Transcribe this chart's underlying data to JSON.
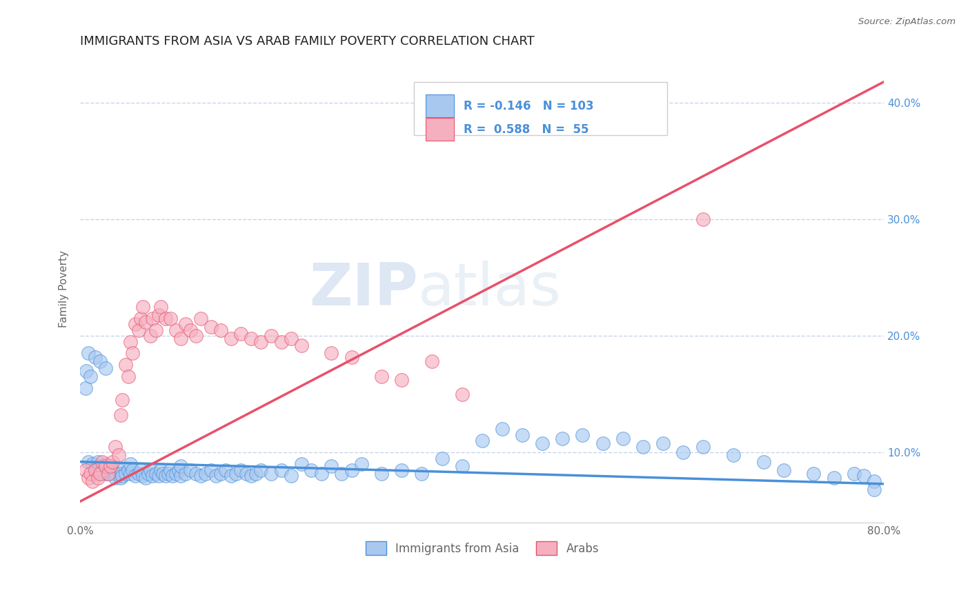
{
  "title": "IMMIGRANTS FROM ASIA VS ARAB FAMILY POVERTY CORRELATION CHART",
  "source": "Source: ZipAtlas.com",
  "ylabel": "Family Poverty",
  "xlim": [
    0.0,
    0.8
  ],
  "ylim": [
    0.04,
    0.44
  ],
  "xticks": [
    0.0,
    0.1,
    0.2,
    0.3,
    0.4,
    0.5,
    0.6,
    0.7,
    0.8
  ],
  "xtick_labels": [
    "0.0%",
    "",
    "",
    "",
    "",
    "",
    "",
    "",
    "80.0%"
  ],
  "yticks_right": [
    0.1,
    0.2,
    0.3,
    0.4
  ],
  "ytick_labels_right": [
    "10.0%",
    "20.0%",
    "30.0%",
    "40.0%"
  ],
  "blue_R": -0.146,
  "blue_N": 103,
  "pink_R": 0.588,
  "pink_N": 55,
  "blue_color": "#A8C8F0",
  "pink_color": "#F5B0C0",
  "blue_line_color": "#4A90D9",
  "pink_line_color": "#E8506A",
  "blue_line_y0": 0.092,
  "blue_line_y1": 0.073,
  "pink_line_y0": 0.058,
  "pink_line_y1": 0.418,
  "legend_label_blue": "Immigrants from Asia",
  "legend_label_pink": "Arabs",
  "watermark_zip": "ZIP",
  "watermark_atlas": "atlas",
  "background_color": "#FFFFFF",
  "grid_color": "#C8D4E8",
  "title_color": "#333333",
  "axis_label_color": "#666666",
  "legend_text_color": "#4A90D9",
  "blue_scatter_x": [
    0.005,
    0.008,
    0.012,
    0.015,
    0.018,
    0.02,
    0.02,
    0.022,
    0.025,
    0.025,
    0.028,
    0.03,
    0.03,
    0.032,
    0.035,
    0.035,
    0.038,
    0.04,
    0.04,
    0.042,
    0.045,
    0.048,
    0.05,
    0.05,
    0.052,
    0.055,
    0.058,
    0.06,
    0.062,
    0.065,
    0.068,
    0.07,
    0.072,
    0.075,
    0.078,
    0.08,
    0.082,
    0.085,
    0.088,
    0.09,
    0.092,
    0.095,
    0.098,
    0.1,
    0.1,
    0.105,
    0.11,
    0.115,
    0.12,
    0.125,
    0.13,
    0.135,
    0.14,
    0.145,
    0.15,
    0.155,
    0.16,
    0.165,
    0.17,
    0.175,
    0.18,
    0.19,
    0.2,
    0.21,
    0.22,
    0.23,
    0.24,
    0.25,
    0.26,
    0.27,
    0.28,
    0.3,
    0.32,
    0.34,
    0.36,
    0.38,
    0.4,
    0.42,
    0.44,
    0.46,
    0.48,
    0.5,
    0.52,
    0.54,
    0.56,
    0.58,
    0.6,
    0.62,
    0.65,
    0.68,
    0.7,
    0.73,
    0.75,
    0.77,
    0.78,
    0.79,
    0.79,
    0.006,
    0.008,
    0.01,
    0.015,
    0.02,
    0.025
  ],
  "blue_scatter_y": [
    0.155,
    0.092,
    0.09,
    0.085,
    0.092,
    0.088,
    0.082,
    0.085,
    0.09,
    0.082,
    0.085,
    0.082,
    0.088,
    0.085,
    0.082,
    0.078,
    0.085,
    0.082,
    0.078,
    0.08,
    0.082,
    0.085,
    0.082,
    0.09,
    0.085,
    0.08,
    0.082,
    0.085,
    0.08,
    0.078,
    0.082,
    0.085,
    0.08,
    0.082,
    0.08,
    0.085,
    0.082,
    0.08,
    0.082,
    0.085,
    0.08,
    0.082,
    0.085,
    0.08,
    0.088,
    0.082,
    0.085,
    0.082,
    0.08,
    0.082,
    0.085,
    0.08,
    0.082,
    0.085,
    0.08,
    0.082,
    0.085,
    0.082,
    0.08,
    0.082,
    0.085,
    0.082,
    0.085,
    0.08,
    0.09,
    0.085,
    0.082,
    0.088,
    0.082,
    0.085,
    0.09,
    0.082,
    0.085,
    0.082,
    0.095,
    0.088,
    0.11,
    0.12,
    0.115,
    0.108,
    0.112,
    0.115,
    0.108,
    0.112,
    0.105,
    0.108,
    0.1,
    0.105,
    0.098,
    0.092,
    0.085,
    0.082,
    0.078,
    0.082,
    0.08,
    0.075,
    0.068,
    0.17,
    0.185,
    0.165,
    0.182,
    0.178,
    0.172
  ],
  "pink_scatter_x": [
    0.005,
    0.008,
    0.01,
    0.012,
    0.015,
    0.018,
    0.02,
    0.022,
    0.025,
    0.028,
    0.03,
    0.032,
    0.035,
    0.038,
    0.04,
    0.042,
    0.045,
    0.048,
    0.05,
    0.052,
    0.055,
    0.058,
    0.06,
    0.062,
    0.065,
    0.07,
    0.072,
    0.075,
    0.078,
    0.08,
    0.085,
    0.09,
    0.095,
    0.1,
    0.105,
    0.11,
    0.115,
    0.12,
    0.13,
    0.14,
    0.15,
    0.16,
    0.17,
    0.18,
    0.19,
    0.2,
    0.21,
    0.22,
    0.25,
    0.27,
    0.3,
    0.32,
    0.35,
    0.38,
    0.62
  ],
  "pink_scatter_y": [
    0.085,
    0.078,
    0.082,
    0.075,
    0.085,
    0.078,
    0.082,
    0.092,
    0.088,
    0.082,
    0.088,
    0.092,
    0.105,
    0.098,
    0.132,
    0.145,
    0.175,
    0.165,
    0.195,
    0.185,
    0.21,
    0.205,
    0.215,
    0.225,
    0.212,
    0.2,
    0.215,
    0.205,
    0.218,
    0.225,
    0.215,
    0.215,
    0.205,
    0.198,
    0.21,
    0.205,
    0.2,
    0.215,
    0.208,
    0.205,
    0.198,
    0.202,
    0.198,
    0.195,
    0.2,
    0.195,
    0.198,
    0.192,
    0.185,
    0.182,
    0.165,
    0.162,
    0.178,
    0.15,
    0.3
  ]
}
